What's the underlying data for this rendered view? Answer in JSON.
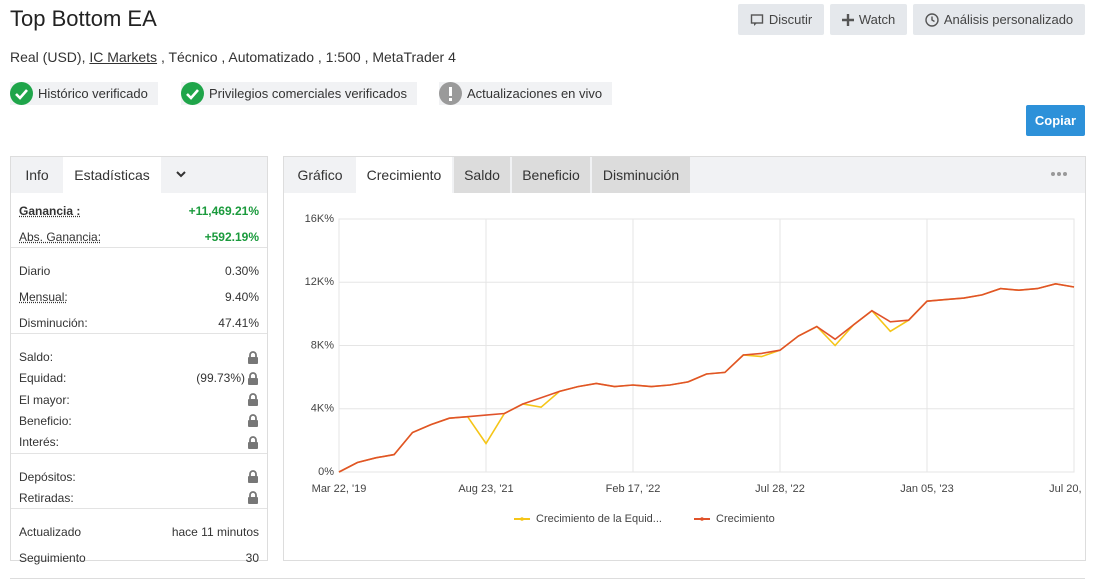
{
  "header": {
    "title": "Top Bottom EA",
    "actions": [
      "Discutir",
      "Watch",
      "Análisis personalizado"
    ],
    "subtitle": {
      "before": "Real (USD),",
      "broker": "IC Markets",
      "after": ", Técnico , Automatizado , 1:500 , MetaTrader 4"
    },
    "badges": [
      {
        "label": "Histórico verificado",
        "status": "ok"
      },
      {
        "label": "Privilegios comerciales verificados",
        "status": "ok"
      },
      {
        "label": "Actualizaciones en vivo",
        "status": "warn"
      }
    ],
    "copy_button": "Copiar"
  },
  "stats": {
    "tabs": [
      "Info",
      "Estadísticas"
    ],
    "groups": [
      [
        {
          "label": "Ganancia :",
          "value": "+11,469.21%",
          "positive": true,
          "strong": true
        },
        {
          "label": "Abs. Ganancia:",
          "value": "+592.19%",
          "positive": true
        }
      ],
      [
        {
          "label": "Diario",
          "value": "0.30%"
        },
        {
          "label": "Mensual:",
          "value": "9.40%"
        },
        {
          "label": "Disminución:",
          "value": "47.41%"
        }
      ],
      [
        {
          "label": "Saldo:",
          "locked": true
        },
        {
          "label": "Equidad:",
          "value": "(99.73%)",
          "locked": true
        },
        {
          "label": "El mayor:",
          "locked": true
        },
        {
          "label": "Beneficio:",
          "locked": true
        },
        {
          "label": "Interés:",
          "locked": true
        }
      ],
      [
        {
          "label": "Depósitos:",
          "locked": true
        },
        {
          "label": "Retiradas:",
          "locked": true
        }
      ],
      [
        {
          "label": "Actualizado",
          "value": "hace 11 minutos"
        },
        {
          "label": "Seguimiento",
          "value": "30"
        }
      ]
    ]
  },
  "chart_tabs": {
    "title": "Gráfico",
    "tabs": [
      "Crecimiento",
      "Saldo",
      "Beneficio",
      "Disminución"
    ]
  },
  "chart_data": {
    "type": "line",
    "x": [
      0,
      2.5,
      5,
      7.5,
      10,
      12.5,
      15,
      17.5,
      20,
      22.5,
      25,
      27.5,
      30,
      32.5,
      35,
      37.5,
      40,
      42.5,
      45,
      47.5,
      50,
      52.5,
      55,
      57.5,
      60,
      62.5,
      65,
      67.5,
      70,
      72.5,
      75,
      77.5,
      80,
      82.5,
      85,
      87.5,
      90,
      92.5,
      95,
      97.5,
      100
    ],
    "series": [
      {
        "name": "Crecimiento de la Equid...",
        "color": "#f5c518",
        "values": [
          0,
          600,
          900,
          1100,
          2500,
          3000,
          3400,
          3500,
          1800,
          3700,
          4300,
          4100,
          5100,
          5400,
          5600,
          5400,
          5500,
          5400,
          5500,
          5700,
          6200,
          6300,
          7400,
          7300,
          7700,
          8600,
          9200,
          8000,
          9300,
          10200,
          8900,
          9600,
          10800,
          10900,
          11000,
          11200,
          11600,
          11500,
          11600,
          11900,
          11700
        ]
      },
      {
        "name": "Crecimiento",
        "color": "#e0522a",
        "values": [
          0,
          600,
          900,
          1100,
          2500,
          3000,
          3400,
          3500,
          3600,
          3700,
          4300,
          4700,
          5100,
          5400,
          5600,
          5400,
          5500,
          5400,
          5500,
          5700,
          6200,
          6300,
          7400,
          7500,
          7700,
          8600,
          9200,
          8400,
          9300,
          10200,
          9500,
          9600,
          10800,
          10900,
          11000,
          11200,
          11600,
          11500,
          11600,
          11900,
          11700
        ]
      }
    ],
    "xlim": [
      0,
      100
    ],
    "xticks": [
      {
        "value": 0,
        "label": "Mar 22, '19"
      },
      {
        "value": 20,
        "label": "Aug 23, '21"
      },
      {
        "value": 40,
        "label": "Feb 17, '22"
      },
      {
        "value": 60,
        "label": "Jul 28, '22"
      },
      {
        "value": 80,
        "label": "Jan 05, '23"
      },
      {
        "value": 100,
        "label": "Jul 20, '23"
      }
    ],
    "ylim": [
      0,
      16000
    ],
    "yticks": [
      {
        "value": 0,
        "label": "0%"
      },
      {
        "value": 4000,
        "label": "4K%"
      },
      {
        "value": 8000,
        "label": "8K%"
      },
      {
        "value": 12000,
        "label": "12K%"
      },
      {
        "value": 16000,
        "label": "16K%"
      }
    ],
    "grid": true
  }
}
